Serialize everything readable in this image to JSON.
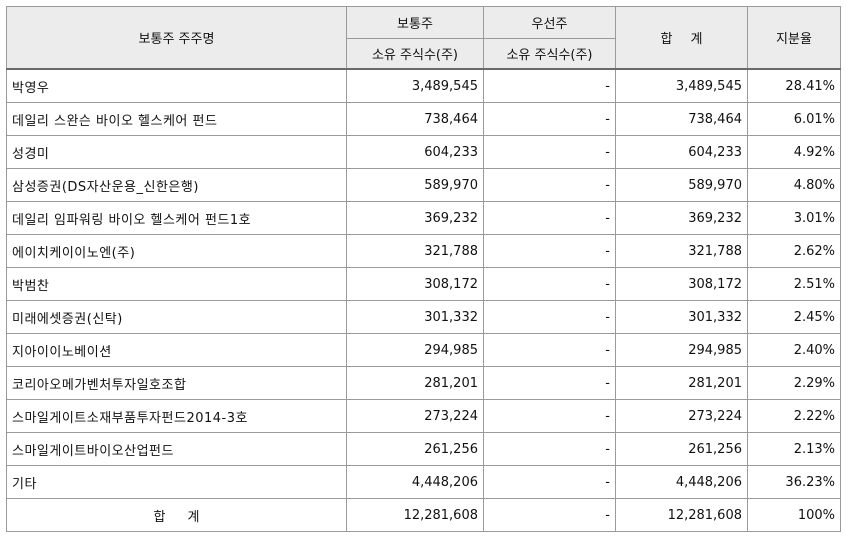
{
  "header": {
    "name_col": "보통주 주주명",
    "common": "보통주",
    "preferred": "우선주",
    "total": "합 계",
    "ratio": "지분율",
    "common_sub": "소유 주식수(주)",
    "preferred_sub": "소유 주식수(주)"
  },
  "rows": [
    {
      "name": "박영우",
      "common": "3,489,545",
      "preferred": "-",
      "total": "3,489,545",
      "ratio": "28.41%"
    },
    {
      "name": "데일리 스완슨 바이오 헬스케어 펀드",
      "common": "738,464",
      "preferred": "-",
      "total": "738,464",
      "ratio": "6.01%"
    },
    {
      "name": "성경미",
      "common": "604,233",
      "preferred": "-",
      "total": "604,233",
      "ratio": "4.92%"
    },
    {
      "name": "삼성증권(DS자산운용_신한은행)",
      "common": "589,970",
      "preferred": "-",
      "total": "589,970",
      "ratio": "4.80%"
    },
    {
      "name": "데일리 임파워링 바이오 헬스케어 펀드1호",
      "common": "369,232",
      "preferred": "-",
      "total": "369,232",
      "ratio": "3.01%"
    },
    {
      "name": "에이치케이이노엔(주)",
      "common": "321,788",
      "preferred": "-",
      "total": "321,788",
      "ratio": "2.62%"
    },
    {
      "name": "박범찬",
      "common": "308,172",
      "preferred": "-",
      "total": "308,172",
      "ratio": "2.51%"
    },
    {
      "name": "미래에셋증권(신탁)",
      "common": "301,332",
      "preferred": "-",
      "total": "301,332",
      "ratio": "2.45%"
    },
    {
      "name": "지아이이노베이션",
      "common": "294,985",
      "preferred": "-",
      "total": "294,985",
      "ratio": "2.40%"
    },
    {
      "name": "코리아오메가벤처투자일호조합",
      "common": "281,201",
      "preferred": "-",
      "total": "281,201",
      "ratio": "2.29%"
    },
    {
      "name": "스마일게이트소재부품투자펀드2014-3호",
      "common": "273,224",
      "preferred": "-",
      "total": "273,224",
      "ratio": "2.22%"
    },
    {
      "name": "스마일게이트바이오산업펀드",
      "common": "261,256",
      "preferred": "-",
      "total": "261,256",
      "ratio": "2.13%"
    },
    {
      "name": "기타",
      "common": "4,448,206",
      "preferred": "-",
      "total": "4,448,206",
      "ratio": "36.23%"
    },
    {
      "name": "합 계",
      "common": "12,281,608",
      "preferred": "-",
      "total": "12,281,608",
      "ratio": "100%"
    }
  ]
}
